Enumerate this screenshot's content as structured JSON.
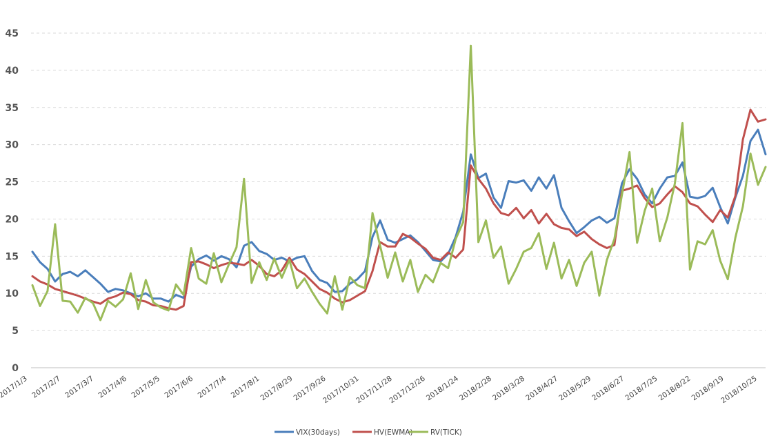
{
  "chart_data": {
    "type": "line",
    "title": "",
    "xlabel": "",
    "ylabel": "",
    "ylim": [
      0,
      45
    ],
    "yticks": [
      0,
      5,
      10,
      15,
      20,
      25,
      30,
      35,
      40,
      45
    ],
    "grid": true,
    "legend_position": "bottom",
    "x_tick_labels": [
      "2017/1/3",
      "2017/2/7",
      "2017/3/7",
      "2017/4/6",
      "2017/5/5",
      "2017/6/6",
      "2017/7/4",
      "2017/8/1",
      "2017/8/29",
      "2017/9/26",
      "2017/10/31",
      "2017/11/28",
      "2017/12/26",
      "2018/1/24",
      "2018/2/28",
      "2018/3/28",
      "2018/4/27",
      "2018/5/29",
      "2018/6/27",
      "2018/7/25",
      "2018/8/22",
      "2018/9/19",
      "2018/10/25"
    ],
    "series": [
      {
        "name": "VIX(30days)",
        "color": "#4a7ebb",
        "values": [
          15.6,
          14.2,
          13.3,
          11.6,
          12.6,
          12.9,
          12.3,
          13.1,
          12.2,
          11.3,
          10.2,
          10.6,
          10.4,
          10.0,
          9.6,
          10.0,
          9.3,
          9.3,
          8.9,
          9.8,
          9.4,
          13.6,
          14.6,
          15.1,
          14.4,
          15.0,
          14.6,
          13.5,
          16.4,
          16.9,
          15.7,
          15.3,
          14.5,
          14.8,
          14.3,
          14.8,
          15.0,
          13.0,
          11.8,
          11.4,
          10.2,
          10.3,
          11.3,
          11.9,
          13.0,
          17.6,
          19.8,
          17.2,
          16.8,
          17.3,
          17.8,
          16.9,
          15.7,
          14.5,
          14.3,
          15.3,
          17.6,
          21.0,
          28.7,
          25.5,
          26.1,
          22.9,
          21.5,
          25.1,
          24.9,
          25.2,
          23.8,
          25.6,
          24.1,
          25.9,
          21.5,
          19.7,
          18.1,
          18.9,
          19.8,
          20.3,
          19.5,
          20.1,
          24.8,
          26.7,
          25.4,
          23.3,
          22.1,
          24.1,
          25.6,
          25.8,
          27.6,
          23.0,
          22.8,
          23.1,
          24.2,
          21.6,
          19.4,
          22.9,
          25.8,
          30.5,
          32.0,
          28.7
        ],
        "label_values": []
      },
      {
        "name": "HV(EWMA)",
        "color": "#c0504d",
        "values": [
          12.3,
          11.6,
          11.2,
          10.6,
          10.3,
          10.0,
          9.7,
          9.3,
          8.9,
          8.6,
          9.3,
          9.6,
          10.1,
          9.9,
          9.1,
          8.9,
          8.4,
          8.3,
          8.0,
          7.8,
          8.3,
          14.2,
          14.3,
          13.9,
          13.4,
          13.8,
          14.1,
          14.0,
          13.8,
          14.5,
          13.7,
          12.6,
          12.3,
          13.1,
          14.8,
          13.2,
          12.6,
          11.6,
          10.6,
          10.1,
          9.3,
          8.8,
          9.1,
          9.7,
          10.3,
          13.0,
          16.9,
          16.3,
          16.3,
          18.0,
          17.5,
          16.7,
          16.0,
          14.8,
          14.5,
          15.5,
          14.8,
          15.9,
          27.2,
          25.4,
          24.1,
          22.1,
          20.8,
          20.5,
          21.5,
          20.1,
          21.2,
          19.4,
          20.7,
          19.3,
          18.8,
          18.6,
          17.7,
          18.3,
          17.3,
          16.6,
          16.1,
          16.5,
          23.8,
          24.1,
          24.5,
          22.8,
          21.6,
          22.1,
          23.3,
          24.4,
          23.6,
          22.1,
          21.7,
          20.6,
          19.6,
          21.2,
          20.2,
          23.1,
          30.7,
          34.7,
          33.1,
          33.4
        ],
        "label_values": []
      },
      {
        "name": "RV(TICK)",
        "color": "#9bbb59",
        "values": [
          11.1,
          8.3,
          10.3,
          19.3,
          9.0,
          8.9,
          7.4,
          9.4,
          8.7,
          6.4,
          9.0,
          8.2,
          9.2,
          12.7,
          7.9,
          11.8,
          8.8,
          8.1,
          7.7,
          11.2,
          9.8,
          16.1,
          12.0,
          11.3,
          15.4,
          11.5,
          13.9,
          16.2,
          25.4,
          11.4,
          14.2,
          11.8,
          14.7,
          12.1,
          14.5,
          10.7,
          12.0,
          10.2,
          8.6,
          7.3,
          12.3,
          7.8,
          12.2,
          11.1,
          10.7,
          20.8,
          16.4,
          12.1,
          15.5,
          11.6,
          14.5,
          10.2,
          12.5,
          11.5,
          14.1,
          13.4,
          17.3,
          19.6,
          43.3,
          16.9,
          19.8,
          14.8,
          16.3,
          11.3,
          13.3,
          15.6,
          16.1,
          18.1,
          13.3,
          16.8,
          12.0,
          14.5,
          11.0,
          14.1,
          15.6,
          9.7,
          14.5,
          17.3,
          23.3,
          29.0,
          16.8,
          21.1,
          24.1,
          17.0,
          20.2,
          24.8,
          32.9,
          13.2,
          17.0,
          16.6,
          18.5,
          14.4,
          11.9,
          17.5,
          21.7,
          28.8,
          24.6,
          27.0
        ],
        "label_values": []
      }
    ]
  }
}
